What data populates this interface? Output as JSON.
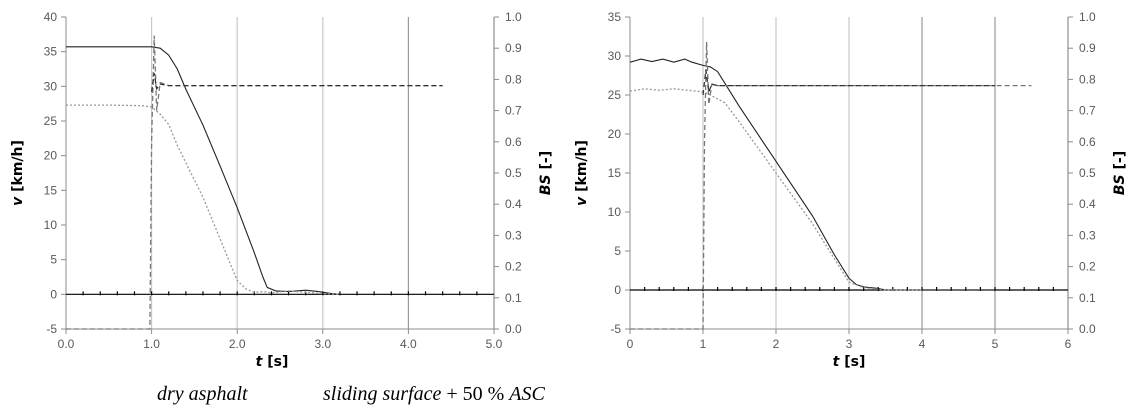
{
  "chart_data": [
    {
      "type": "line",
      "xlabel_var": "t",
      "xlabel_unit": "[s]",
      "ylabel_var": "v",
      "ylabel_unit": "[km/h]",
      "y2label_var": "BS",
      "y2label_unit": "[-]",
      "xlim": [
        0,
        5
      ],
      "ylim": [
        -5,
        40
      ],
      "y2lim": [
        0,
        1
      ],
      "x_ticks": [
        "0.0",
        "1.0",
        "2.0",
        "3.0",
        "4.0",
        "5.0"
      ],
      "y_ticks": [
        "-5",
        "0",
        "5",
        "10",
        "15",
        "20",
        "25",
        "30",
        "35",
        "40"
      ],
      "y2_ticks": [
        "0.0",
        "0.1",
        "0.2",
        "0.3",
        "0.4",
        "0.5",
        "0.6",
        "0.7",
        "0.8",
        "0.9",
        "1.0"
      ],
      "series": [
        {
          "axis": "y",
          "style": "solid",
          "color": "#222222",
          "x": [
            0,
            0.5,
            1.0,
            1.1,
            1.2,
            1.3,
            1.4,
            1.6,
            1.8,
            2.0,
            2.2,
            2.3,
            2.35,
            2.45,
            2.6,
            2.8,
            2.95,
            3.1,
            3.2
          ],
          "y": [
            35.7,
            35.7,
            35.7,
            35.5,
            34.5,
            32.5,
            29.6,
            24.4,
            18.5,
            12.5,
            6.0,
            2.5,
            1.0,
            0.5,
            0.4,
            0.6,
            0.4,
            0.1,
            0.0
          ]
        },
        {
          "axis": "y",
          "style": "dotted",
          "color": "#999999",
          "x": [
            0,
            0.5,
            0.9,
            1.0,
            1.1,
            1.2,
            1.3,
            1.4,
            1.6,
            1.8,
            1.9,
            2.0,
            2.1,
            2.2,
            2.3,
            2.4,
            2.6,
            2.8,
            3.0,
            3.2
          ],
          "y": [
            27.3,
            27.3,
            27.2,
            27.0,
            26.0,
            24.5,
            21.5,
            19.0,
            14.0,
            8.0,
            5.0,
            2.0,
            0.8,
            0.3,
            0.4,
            0.2,
            0.5,
            0.3,
            0.1,
            0.0
          ]
        },
        {
          "axis": "y2",
          "style": "dashed",
          "color": "#777777",
          "x": [
            0,
            0.98,
            1.0,
            1.03,
            1.06,
            1.1,
            1.2,
            1.5,
            2.0,
            3.0,
            4.0,
            4.4
          ],
          "y": [
            0.0,
            0.0,
            0.6,
            0.94,
            0.7,
            0.79,
            0.78,
            0.78,
            0.78,
            0.78,
            0.78,
            0.78
          ]
        },
        {
          "axis": "y2",
          "style": "dashed",
          "color": "#333333",
          "x": [
            1.0,
            1.03,
            1.06,
            1.1,
            1.2,
            1.5,
            2.0,
            3.0,
            4.0,
            4.4
          ],
          "y": [
            0.76,
            0.82,
            0.77,
            0.785,
            0.78,
            0.78,
            0.78,
            0.78,
            0.78,
            0.78
          ]
        }
      ],
      "caption": "dry asphalt"
    },
    {
      "type": "line",
      "xlabel_var": "t",
      "xlabel_unit": "[s]",
      "ylabel_var": "v",
      "ylabel_unit": "[km/h]",
      "y2label_var": "BS",
      "y2label_unit": "[-]",
      "xlim": [
        0,
        6
      ],
      "ylim": [
        -5,
        35
      ],
      "y2lim": [
        0,
        1
      ],
      "x_ticks": [
        "0",
        "1",
        "2",
        "3",
        "4",
        "5",
        "6"
      ],
      "y_ticks": [
        "-5",
        "0",
        "5",
        "10",
        "15",
        "20",
        "25",
        "30",
        "35"
      ],
      "y2_ticks": [
        "0.0",
        "0.1",
        "0.2",
        "0.3",
        "0.4",
        "0.5",
        "0.6",
        "0.7",
        "0.8",
        "0.9",
        "1.0"
      ],
      "series": [
        {
          "axis": "y",
          "style": "solid",
          "color": "#222222",
          "x": [
            0,
            0.15,
            0.3,
            0.45,
            0.6,
            0.75,
            0.85,
            1.0,
            1.1,
            1.2,
            1.3,
            1.5,
            2.0,
            2.5,
            2.8,
            3.0,
            3.1,
            3.2,
            3.4,
            3.5,
            4.0,
            5.0
          ],
          "y": [
            29.2,
            29.6,
            29.3,
            29.6,
            29.2,
            29.6,
            29.2,
            28.8,
            28.6,
            28.0,
            26.5,
            23.5,
            16.5,
            9.5,
            4.5,
            1.5,
            0.7,
            0.4,
            0.2,
            0.0,
            0.0,
            0.0
          ]
        },
        {
          "axis": "y",
          "style": "dotted",
          "color": "#999999",
          "x": [
            0,
            0.2,
            0.4,
            0.6,
            0.8,
            1.0,
            1.1,
            1.3,
            1.5,
            2.0,
            2.5,
            2.8,
            3.0,
            3.2,
            3.5,
            4.0
          ],
          "y": [
            25.5,
            25.8,
            25.6,
            25.8,
            25.6,
            25.4,
            25.0,
            24.0,
            21.5,
            15.0,
            8.5,
            4.0,
            1.0,
            0.3,
            0.0,
            0.0
          ]
        },
        {
          "axis": "y2",
          "style": "dashed",
          "color": "#777777",
          "x": [
            0,
            1.0,
            1.02,
            1.05,
            1.08,
            1.12,
            1.2,
            1.5,
            2.0,
            3.0,
            4.0,
            5.0,
            5.5
          ],
          "y": [
            0.0,
            0.0,
            0.6,
            0.92,
            0.72,
            0.785,
            0.78,
            0.78,
            0.78,
            0.78,
            0.78,
            0.78,
            0.78
          ]
        },
        {
          "axis": "y2",
          "style": "dashed",
          "color": "#333333",
          "x": [
            1.0,
            1.04,
            1.08,
            1.12,
            1.2,
            1.5,
            2.0,
            3.0,
            4.0,
            5.0
          ],
          "y": [
            0.75,
            0.83,
            0.76,
            0.785,
            0.78,
            0.78,
            0.78,
            0.78,
            0.78,
            0.78
          ]
        }
      ],
      "caption_italic": "sliding surface",
      "caption_plain": " + 50 % ",
      "caption_italic2": "ASC"
    }
  ]
}
